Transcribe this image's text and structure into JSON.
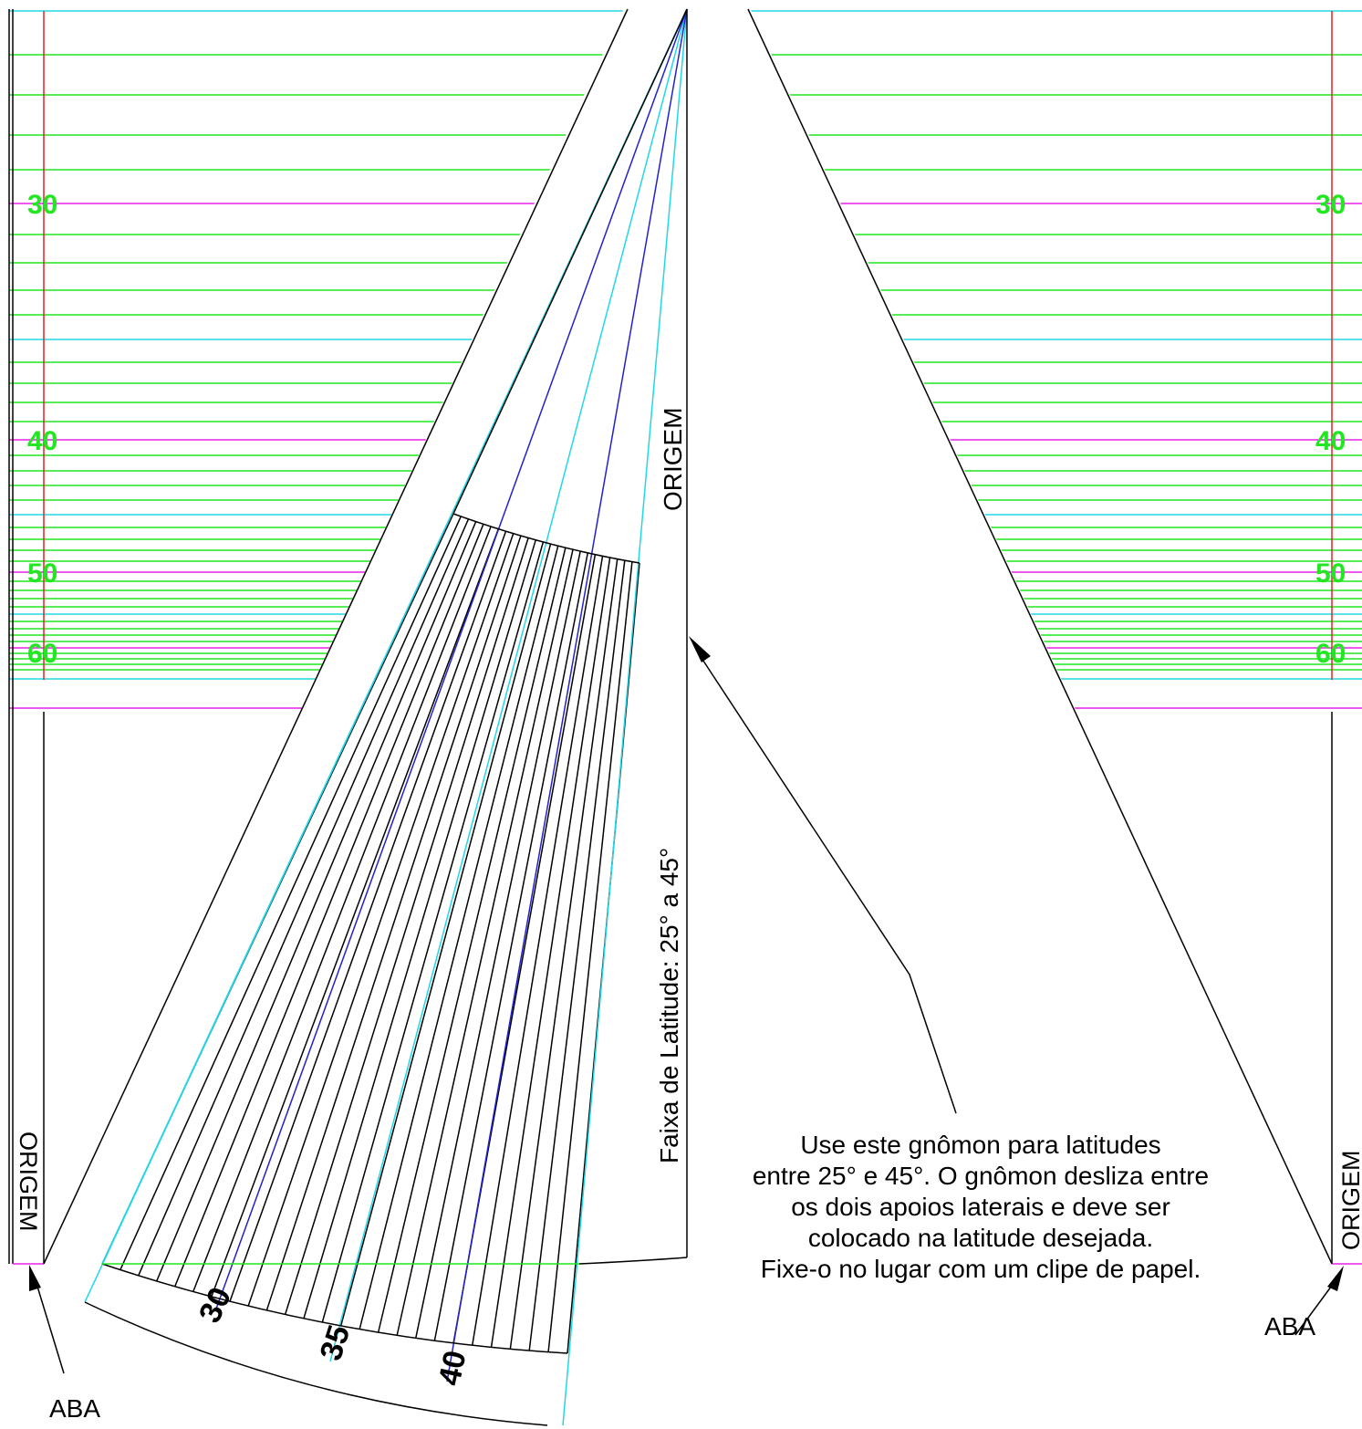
{
  "colors": {
    "green": "#22e622",
    "cyan": "#22d8e6",
    "magenta": "#e622e6",
    "red": "#e62222",
    "blue": "#2222cc",
    "black": "#000000"
  },
  "left_scale": {
    "labels": [
      "30",
      "40",
      "50",
      "60"
    ],
    "origin_label": "ORIGEM",
    "tab_label": "ABA"
  },
  "right_scale": {
    "labels": [
      "30",
      "40",
      "50",
      "60"
    ],
    "origin_label": "ORIGEM",
    "tab_label": "ABA"
  },
  "gnomon": {
    "origin_label": "ORIGEM",
    "range_label": "Faixa de Latitude: 25° a 45°",
    "fan_labels": [
      "30",
      "35",
      "40"
    ]
  },
  "instructions": [
    "Use este gnômon para latitudes",
    "entre 25° e 45°. O gnômon desliza entre",
    "os dois apoios laterais e deve ser",
    "colocado na latitude desejada.",
    "Fixe-o no lugar com um clipe de papel."
  ]
}
